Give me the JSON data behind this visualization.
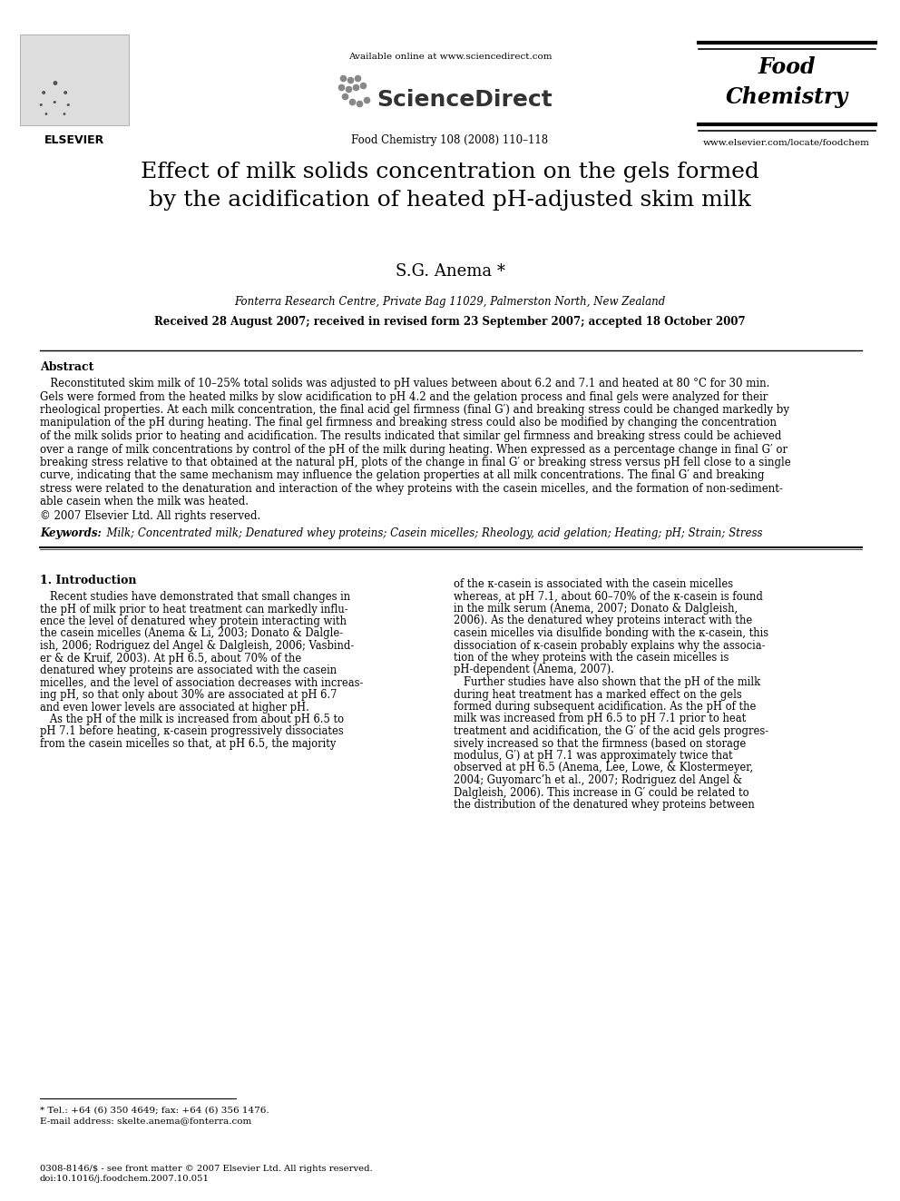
{
  "bg_color": "#ffffff",
  "header": {
    "available_online": "Available online at www.sciencedirect.com",
    "sciencedirect_text": "ScienceDirect",
    "journal_line1": "Food",
    "journal_line2": "Chemistry",
    "journal_ref": "Food Chemistry 108 (2008) 110–118",
    "journal_url": "www.elsevier.com/locate/foodchem",
    "elsevier_text": "ELSEVIER"
  },
  "title": "Effect of milk solids concentration on the gels formed\nby the acidification of heated pH-adjusted skim milk",
  "author": "S.G. Anema *",
  "affiliation": "Fonterra Research Centre, Private Bag 11029, Palmerston North, New Zealand",
  "received": "Received 28 August 2007; received in revised form 23 September 2007; accepted 18 October 2007",
  "abstract_label": "Abstract",
  "abstract_lines": [
    "   Reconstituted skim milk of 10–25% total solids was adjusted to pH values between about 6.2 and 7.1 and heated at 80 °C for 30 min.",
    "Gels were formed from the heated milks by slow acidification to pH 4.2 and the gelation process and final gels were analyzed for their",
    "rheological properties. At each milk concentration, the final acid gel firmness (final G′) and breaking stress could be changed markedly by",
    "manipulation of the pH during heating. The final gel firmness and breaking stress could also be modified by changing the concentration",
    "of the milk solids prior to heating and acidification. The results indicated that similar gel firmness and breaking stress could be achieved",
    "over a range of milk concentrations by control of the pH of the milk during heating. When expressed as a percentage change in final G′ or",
    "breaking stress relative to that obtained at the natural pH, plots of the change in final G′ or breaking stress versus pH fell close to a single",
    "curve, indicating that the same mechanism may influence the gelation properties at all milk concentrations. The final G′ and breaking",
    "stress were related to the denaturation and interaction of the whey proteins with the casein micelles, and the formation of non-sediment-",
    "able casein when the milk was heated."
  ],
  "copyright": "© 2007 Elsevier Ltd. All rights reserved.",
  "keywords_label": "Keywords:",
  "keywords": "  Milk; Concentrated milk; Denatured whey proteins; Casein micelles; Rheology, acid gelation; Heating; pH; Strain; Stress",
  "intro_heading": "1. Introduction",
  "intro_col1_lines": [
    "   Recent studies have demonstrated that small changes in",
    "the pH of milk prior to heat treatment can markedly influ-",
    "ence the level of denatured whey protein interacting with",
    "the casein micelles (Anema & Li, 2003; Donato & Dalgle-",
    "ish, 2006; Rodriguez del Angel & Dalgleish, 2006; Vasbind-",
    "er & de Kruif, 2003). At pH 6.5, about 70% of the",
    "denatured whey proteins are associated with the casein",
    "micelles, and the level of association decreases with increas-",
    "ing pH, so that only about 30% are associated at pH 6.7",
    "and even lower levels are associated at higher pH.",
    "   As the pH of the milk is increased from about pH 6.5 to",
    "pH 7.1 before heating, κ-casein progressively dissociates",
    "from the casein micelles so that, at pH 6.5, the majority"
  ],
  "intro_col2_lines": [
    "of the κ-casein is associated with the casein micelles",
    "whereas, at pH 7.1, about 60–70% of the κ-casein is found",
    "in the milk serum (Anema, 2007; Donato & Dalgleish,",
    "2006). As the denatured whey proteins interact with the",
    "casein micelles via disulfide bonding with the κ-casein, this",
    "dissociation of κ-casein probably explains why the associa-",
    "tion of the whey proteins with the casein micelles is",
    "pH-dependent (Anema, 2007).",
    "   Further studies have also shown that the pH of the milk",
    "during heat treatment has a marked effect on the gels",
    "formed during subsequent acidification. As the pH of the",
    "milk was increased from pH 6.5 to pH 7.1 prior to heat",
    "treatment and acidification, the G′ of the acid gels progres-",
    "sively increased so that the firmness (based on storage",
    "modulus, G′) at pH 7.1 was approximately twice that",
    "observed at pH 6.5 (Anema, Lee, Lowe, & Klostermeyer,",
    "2004; Guyomarc’h et al., 2007; Rodriguez del Angel &",
    "Dalgleish, 2006). This increase in G′ could be related to",
    "the distribution of the denatured whey proteins between"
  ],
  "footnote_star": "* Tel.: +64 (6) 350 4649; fax: +64 (6) 356 1476.",
  "footnote_email": "E-mail address: skelte.anema@fonterra.com",
  "footnote_bottom1": "0308-8146/$ - see front matter © 2007 Elsevier Ltd. All rights reserved.",
  "footnote_bottom2": "doi:10.1016/j.foodchem.2007.10.051"
}
